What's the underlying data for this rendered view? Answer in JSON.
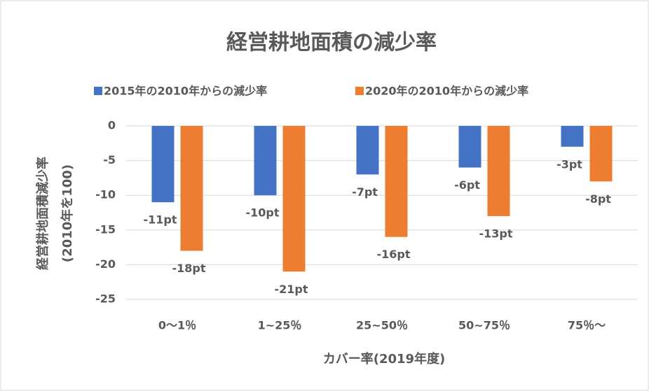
{
  "chart_data": {
    "type": "bar",
    "title": "経営耕地面積の減少率",
    "categories": [
      "0～1％",
      "1~25％",
      "25~50％",
      "50~75％",
      "75％～"
    ],
    "series": [
      {
        "name": "2015年の2010年からの減少率",
        "color": "#4472c4",
        "values": [
          -11,
          -10,
          -7,
          -6,
          -3
        ],
        "value_labels": [
          "-11pt",
          "-10pt",
          "-7pt",
          "-6pt",
          "-3pt"
        ]
      },
      {
        "name": "2020年の2010年からの減少率",
        "color": "#ed7d31",
        "values": [
          -18,
          -21,
          -16,
          -13,
          -8
        ],
        "value_labels": [
          "-18pt",
          "-21pt",
          "-16pt",
          "-13pt",
          "-8pt"
        ]
      }
    ],
    "xlabel": "カバー率(2019年度)",
    "ylabel": [
      "経営耕地面積減少率",
      "(2010年を100)"
    ],
    "ylim": [
      -25,
      0
    ],
    "yticks": [
      0,
      -5,
      -10,
      -15,
      -20,
      -25
    ],
    "grid": true,
    "legend": "top"
  }
}
